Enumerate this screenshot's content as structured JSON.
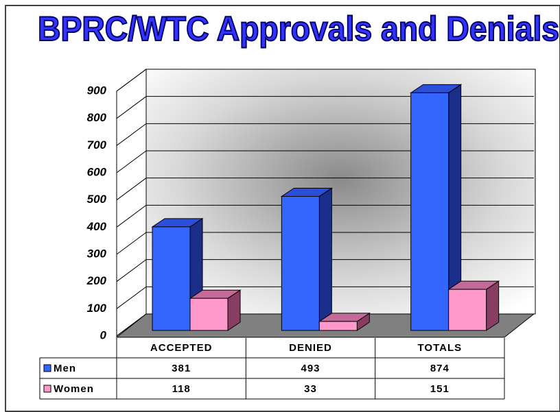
{
  "chart_data": {
    "type": "bar3d",
    "title": "BPRC/WTC Approvals and Denials",
    "categories": [
      "ACCEPTED",
      "DENIED",
      "TOTALS"
    ],
    "series": [
      {
        "name": "Men",
        "color": "#3366ff",
        "values": [
          381,
          493,
          874
        ]
      },
      {
        "name": "Women",
        "color": "#ff99cc",
        "values": [
          118,
          33,
          151
        ]
      }
    ],
    "ylim": [
      0,
      900
    ],
    "yticks": [
      0,
      100,
      200,
      300,
      400,
      500,
      600,
      700,
      800,
      900
    ],
    "grid": true
  }
}
